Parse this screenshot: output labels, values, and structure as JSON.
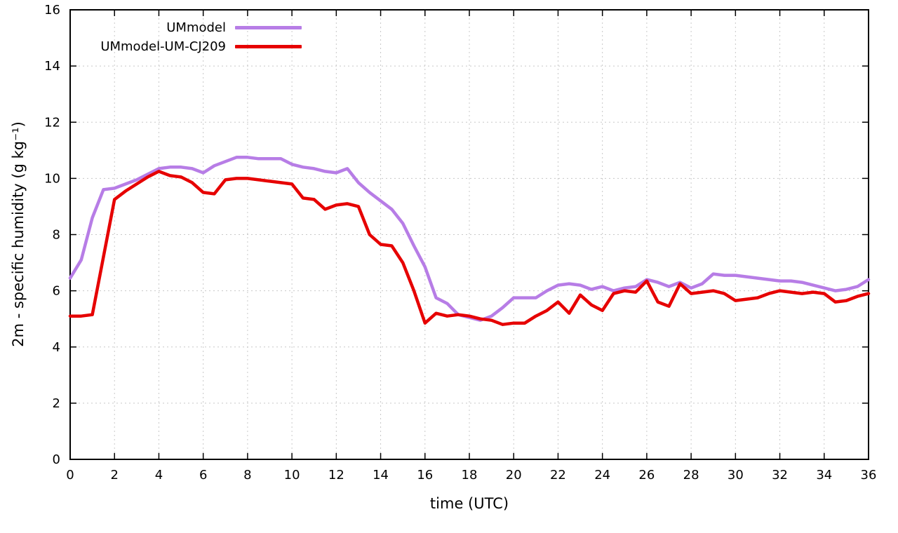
{
  "chart_data": {
    "type": "line",
    "title": "",
    "xlabel": "time (UTC)",
    "ylabel": "2m - specific humidity (g kg⁻¹)",
    "xlim": [
      0,
      36
    ],
    "ylim": [
      0,
      16
    ],
    "xtick_step": 2,
    "ytick_step": 2,
    "grid": true,
    "legend_position": "top-left-inside",
    "x": [
      0,
      0.5,
      1,
      1.5,
      2,
      2.5,
      3,
      3.5,
      4,
      4.5,
      5,
      5.5,
      6,
      6.5,
      7,
      7.5,
      8,
      8.5,
      9,
      9.5,
      10,
      10.5,
      11,
      11.5,
      12,
      12.5,
      13,
      13.5,
      14,
      14.5,
      15,
      15.5,
      16,
      16.5,
      17,
      17.5,
      18,
      18.5,
      19,
      19.5,
      20,
      20.5,
      21,
      21.5,
      22,
      22.5,
      23,
      23.5,
      24,
      24.5,
      25,
      25.5,
      26,
      26.5,
      27,
      27.5,
      28,
      28.5,
      29,
      29.5,
      30,
      30.5,
      31,
      31.5,
      32,
      32.5,
      33,
      33.5,
      34,
      34.5,
      35,
      35.5,
      36
    ],
    "series": [
      {
        "name": "UMmodel",
        "color": "#b77de6",
        "line_width": 4.5,
        "values": [
          6.45,
          7.1,
          8.6,
          9.6,
          9.65,
          9.8,
          9.95,
          10.15,
          10.35,
          10.4,
          10.4,
          10.35,
          10.2,
          10.45,
          10.6,
          10.75,
          10.75,
          10.7,
          10.7,
          10.7,
          10.5,
          10.4,
          10.35,
          10.25,
          10.2,
          10.35,
          9.85,
          9.5,
          9.2,
          8.9,
          8.4,
          7.6,
          6.85,
          5.75,
          5.55,
          5.15,
          5.05,
          4.95,
          5.1,
          5.4,
          5.75,
          5.75,
          5.75,
          6.0,
          6.2,
          6.25,
          6.2,
          6.05,
          6.15,
          6.0,
          6.1,
          6.15,
          6.4,
          6.3,
          6.15,
          6.3,
          6.1,
          6.25,
          6.6,
          6.55,
          6.55,
          6.5,
          6.45,
          6.4,
          6.35,
          6.35,
          6.3,
          6.2,
          6.1,
          6.0,
          6.05,
          6.15,
          6.4
        ]
      },
      {
        "name": "UMmodel-UM-CJ209",
        "color": "#e60000",
        "line_width": 4.5,
        "values": [
          5.1,
          5.1,
          5.15,
          7.2,
          9.25,
          9.55,
          9.8,
          10.05,
          10.25,
          10.1,
          10.05,
          9.85,
          9.5,
          9.45,
          9.95,
          10.0,
          10.0,
          9.95,
          9.9,
          9.85,
          9.8,
          9.3,
          9.25,
          8.9,
          9.05,
          9.1,
          9.0,
          8.0,
          7.65,
          7.6,
          7.0,
          6.0,
          4.85,
          5.2,
          5.1,
          5.15,
          5.1,
          5.0,
          4.95,
          4.8,
          4.85,
          4.85,
          5.1,
          5.3,
          5.6,
          5.2,
          5.85,
          5.5,
          5.3,
          5.9,
          6.0,
          5.95,
          6.35,
          5.6,
          5.45,
          6.25,
          5.9,
          5.95,
          6.0,
          5.9,
          5.65,
          5.7,
          5.75,
          5.9,
          6.0,
          5.95,
          5.9,
          5.95,
          5.9,
          5.6,
          5.65,
          5.8,
          5.9
        ]
      }
    ]
  },
  "colors": {
    "background": "#ffffff",
    "grid": "#c8c8c8",
    "axis": "#000000",
    "tick_label": "#000000"
  }
}
